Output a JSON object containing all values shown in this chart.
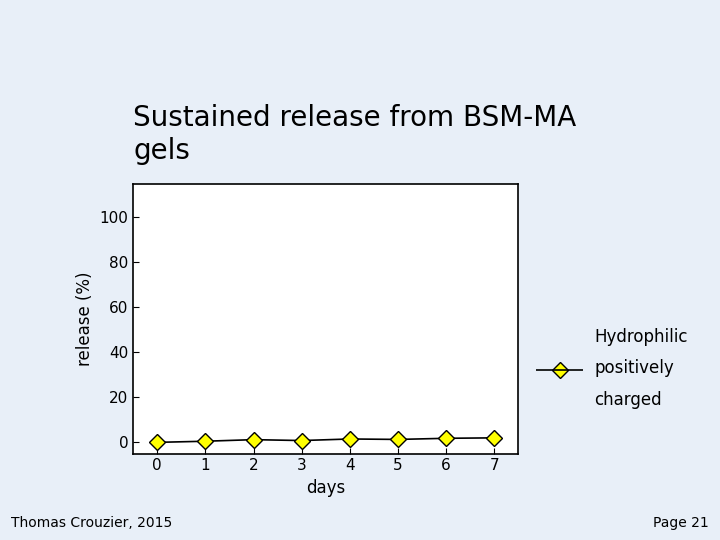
{
  "title": "Sustained release from BSM-MA\ngels",
  "xlabel": "days",
  "ylabel": "release (%)",
  "background_color": "#e8eff8",
  "plot_bg_color": "#ffffff",
  "x_data": [
    0,
    1,
    2,
    3,
    4,
    5,
    6,
    7
  ],
  "y_data": [
    0.0,
    0.5,
    1.2,
    0.8,
    1.5,
    1.3,
    1.8,
    2.0
  ],
  "line_color": "#000000",
  "marker_face_color": "#ffff00",
  "marker_edge_color": "#000000",
  "marker_style": "D",
  "marker_size": 8,
  "xlim": [
    -0.5,
    7.5
  ],
  "ylim": [
    -5,
    115
  ],
  "yticks": [
    0,
    20,
    40,
    60,
    80,
    100
  ],
  "xticks": [
    0,
    1,
    2,
    3,
    4,
    5,
    6,
    7
  ],
  "legend_label_line1": "Hydrophilic",
  "legend_label_line2": "positively",
  "legend_label_line3": "charged",
  "legend_line_color": "#000000",
  "footer_left": "Thomas Crouzier, 2015",
  "footer_right": "Page 21",
  "title_fontsize": 20,
  "axis_label_fontsize": 12,
  "tick_fontsize": 11,
  "legend_fontsize": 12,
  "footer_fontsize": 10
}
